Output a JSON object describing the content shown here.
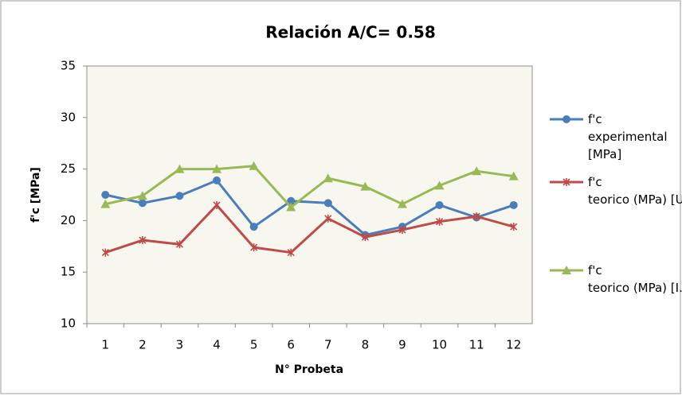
{
  "chart_data": {
    "type": "line",
    "title": "Relación A/C= 0.58",
    "x_label": "N° Probeta",
    "y_label": "f'c [MPa]",
    "categories": [
      "1",
      "2",
      "3",
      "4",
      "5",
      "6",
      "7",
      "8",
      "9",
      "10",
      "11",
      "12"
    ],
    "series": [
      {
        "name": "f'c experimental [MPa]",
        "color": "#4a7ebb",
        "marker": "circle",
        "values": [
          22.5,
          21.7,
          22.4,
          23.9,
          19.4,
          21.9,
          21.7,
          18.6,
          19.4,
          21.5,
          20.3,
          21.5
        ]
      },
      {
        "name": "f'c teorico (MPa) [UPV]",
        "color": "#be4b48",
        "marker": "star",
        "values": [
          16.9,
          18.1,
          17.7,
          21.5,
          17.4,
          16.9,
          20.2,
          18.4,
          19.1,
          19.9,
          20.4,
          19.4
        ]
      },
      {
        "name": "f'c teorico (MPa) [I.E]",
        "color": "#98b954",
        "marker": "triangle",
        "values": [
          21.6,
          22.4,
          25.0,
          25.0,
          25.3,
          21.3,
          24.1,
          23.3,
          21.6,
          23.4,
          24.8,
          24.3
        ]
      }
    ],
    "ylim": [
      10,
      35
    ],
    "yticks": [
      10,
      15,
      20,
      25,
      30,
      35
    ],
    "grid": false,
    "legend": "right"
  }
}
